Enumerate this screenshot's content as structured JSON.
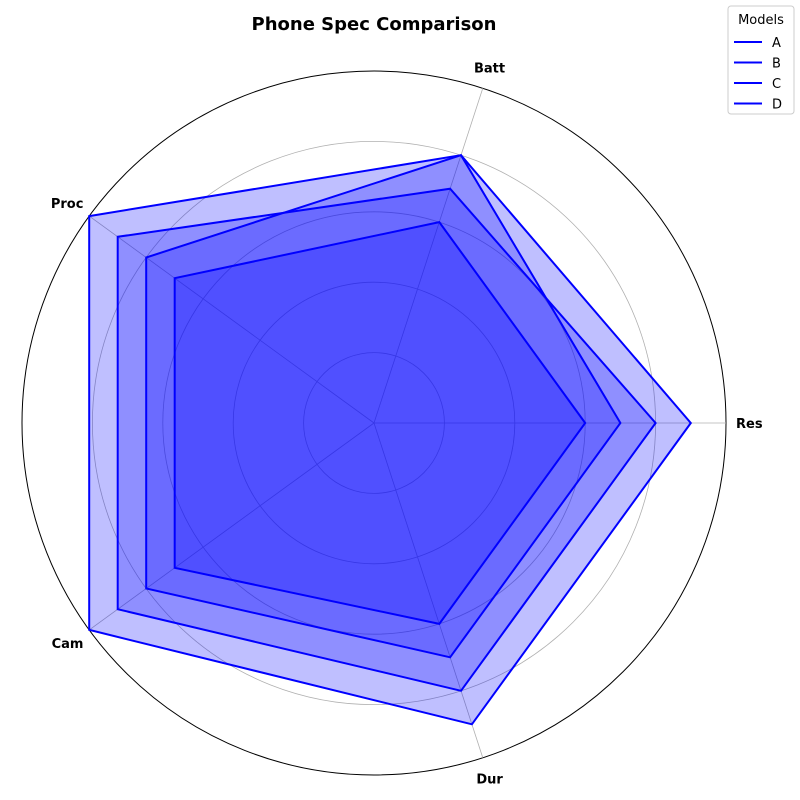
{
  "chart_data": {
    "type": "radar",
    "title": "Phone Spec Comparison",
    "axes": [
      "Res",
      "Batt",
      "Proc",
      "Cam",
      "Dur"
    ],
    "rlim": [
      0,
      10
    ],
    "grid_rings": [
      2,
      4,
      6,
      8,
      10
    ],
    "grid": true,
    "legend": {
      "title": "Models",
      "position": "top-right"
    },
    "color": "#0000ff",
    "series": [
      {
        "name": "A",
        "values": [
          9,
          8,
          10,
          10,
          9
        ]
      },
      {
        "name": "B",
        "values": [
          8,
          7,
          9,
          9,
          8
        ]
      },
      {
        "name": "C",
        "values": [
          7,
          8,
          8,
          8,
          7
        ]
      },
      {
        "name": "D",
        "values": [
          6,
          6,
          7,
          7,
          6
        ]
      }
    ]
  }
}
